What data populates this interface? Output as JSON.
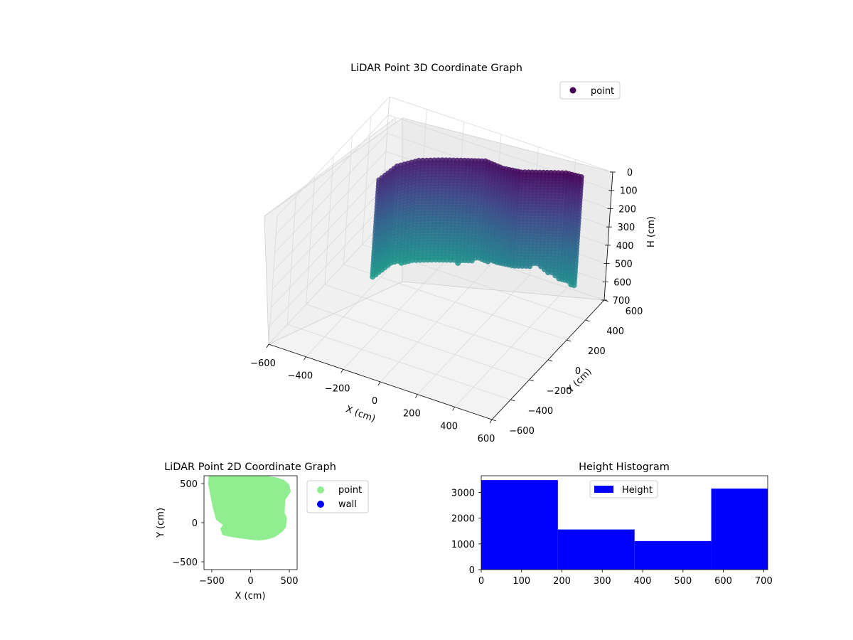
{
  "figure": {
    "background": "#ffffff"
  },
  "chart_data": [
    {
      "type": "scatter",
      "title": "LiDAR Point 3D Coordinate Graph",
      "xlabel": "X (cm)",
      "ylabel": "Y (cm)",
      "zlabel": "H (cm)",
      "projection": "3d",
      "xlim": [
        -600,
        600
      ],
      "ylim": [
        -600,
        600
      ],
      "zlim": [
        0,
        700
      ],
      "z_inverted": true,
      "xticks": [
        "−600",
        "−400",
        "−200",
        "0",
        "200",
        "400",
        "600"
      ],
      "yticks": [
        "−600",
        "−400",
        "−200",
        "0",
        "200",
        "400",
        "600"
      ],
      "zticks": [
        "0",
        "100",
        "200",
        "300",
        "400",
        "500",
        "600",
        "700"
      ],
      "colormap": "viridis",
      "legend": {
        "placement": "top-right",
        "entries": [
          {
            "label": "point",
            "color": "#440154"
          }
        ]
      },
      "series": [
        {
          "name": "point",
          "description_points": [
            {
              "x": -420,
              "y": 150,
              "h_range": [
                150,
                680
              ]
            },
            {
              "x": -380,
              "y": 260,
              "h_range": [
                120,
                660
              ]
            },
            {
              "x": -300,
              "y": 330,
              "h_range": [
                100,
                650
              ]
            },
            {
              "x": -200,
              "y": 380,
              "h_range": [
                90,
                640
              ]
            },
            {
              "x": -100,
              "y": 420,
              "h_range": [
                80,
                640
              ]
            },
            {
              "x": 0,
              "y": 440,
              "h_range": [
                60,
                600
              ]
            },
            {
              "x": 100,
              "y": 430,
              "h_range": [
                60,
                580
              ]
            },
            {
              "x": 200,
              "y": 420,
              "h_range": [
                40,
                560
              ]
            },
            {
              "x": 300,
              "y": 460,
              "h_range": [
                30,
                540
              ]
            },
            {
              "x": 400,
              "y": 500,
              "h_range": [
                20,
                600
              ]
            },
            {
              "x": 480,
              "y": 540,
              "h_range": [
                40,
                640
              ]
            }
          ]
        }
      ],
      "grid": true
    },
    {
      "type": "scatter",
      "title": "LiDAR Point 2D Coordinate Graph",
      "xlabel": "X (cm)",
      "ylabel": "Y (cm)",
      "xlim": [
        -600,
        600
      ],
      "ylim": [
        -600,
        600
      ],
      "xticks": [
        "−500",
        "0",
        "500"
      ],
      "yticks": [
        "−500",
        "0",
        "500"
      ],
      "legend": {
        "placement": "outside-right",
        "entries": [
          {
            "label": "point",
            "color": "#90ee90"
          },
          {
            "label": "wall",
            "color": "#0000ff"
          }
        ]
      },
      "series": [
        {
          "name": "point",
          "color": "#90ee90",
          "outline": [
            [
              -520,
              600
            ],
            [
              -280,
              600
            ],
            [
              -100,
              600
            ],
            [
              60,
              590
            ],
            [
              200,
              580
            ],
            [
              330,
              560
            ],
            [
              420,
              530
            ],
            [
              480,
              480
            ],
            [
              500,
              400
            ],
            [
              430,
              300
            ],
            [
              420,
              120
            ],
            [
              450,
              60
            ],
            [
              440,
              -50
            ],
            [
              400,
              -100
            ],
            [
              300,
              -170
            ],
            [
              200,
              -200
            ],
            [
              100,
              -210
            ],
            [
              0,
              -200
            ],
            [
              -150,
              -180
            ],
            [
              -280,
              -160
            ],
            [
              -350,
              -140
            ],
            [
              -370,
              -80
            ],
            [
              -330,
              -20
            ],
            [
              -380,
              10
            ],
            [
              -430,
              50
            ],
            [
              -470,
              200
            ],
            [
              -500,
              350
            ],
            [
              -530,
              500
            ]
          ]
        },
        {
          "name": "wall",
          "color": "#0000ff",
          "points": []
        }
      ]
    },
    {
      "type": "bar",
      "title": "Height Histogram",
      "xlim": [
        0,
        710
      ],
      "ylim": [
        0,
        3650
      ],
      "xticks": [
        "0",
        "100",
        "200",
        "300",
        "400",
        "500",
        "600",
        "700"
      ],
      "yticks": [
        "0",
        "1000",
        "2000",
        "3000"
      ],
      "legend": {
        "placement": "top-center",
        "entries": [
          {
            "label": "Height",
            "color": "#0000ff"
          }
        ]
      },
      "series": [
        {
          "name": "Height",
          "color": "#0000ff",
          "bins": [
            {
              "from": 0,
              "to": 190,
              "value": 3480
            },
            {
              "from": 190,
              "to": 380,
              "value": 1560
            },
            {
              "from": 380,
              "to": 570,
              "value": 1110
            },
            {
              "from": 570,
              "to": 710,
              "value": 3150
            }
          ]
        }
      ]
    }
  ]
}
